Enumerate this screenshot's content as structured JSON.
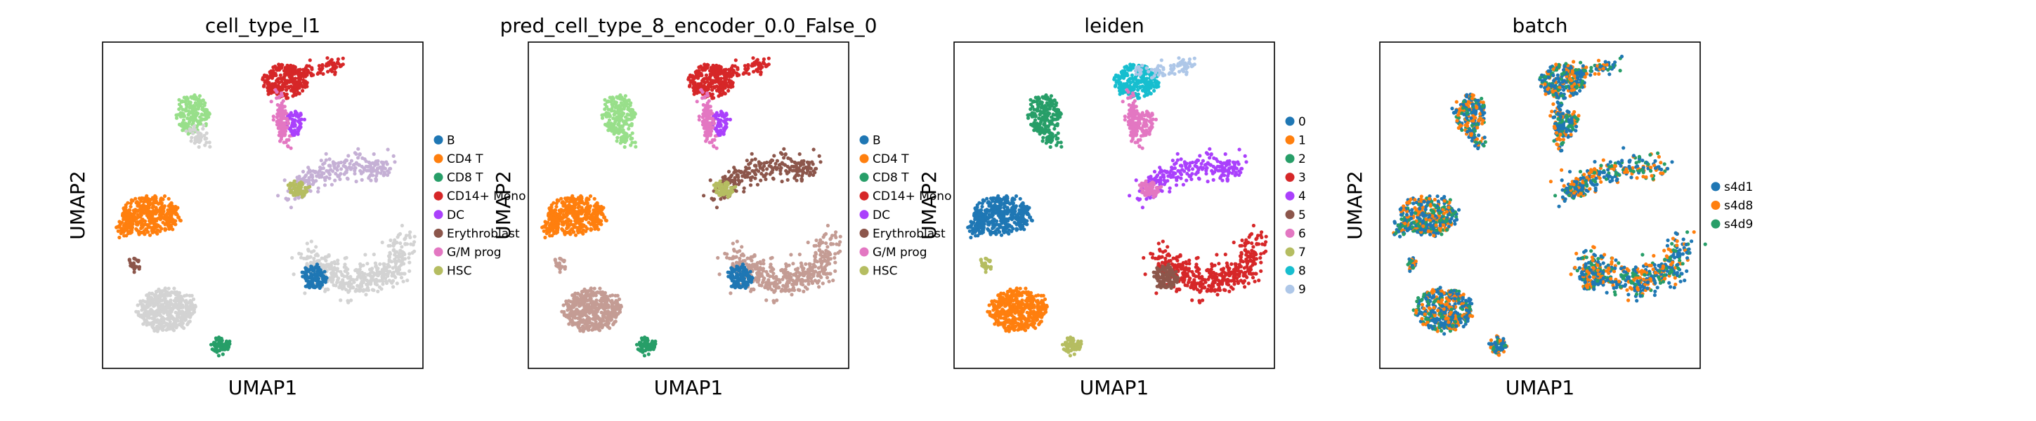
{
  "chart_data": [
    {
      "type": "scatter",
      "title": "cell_type_l1",
      "xlabel": "UMAP1",
      "ylabel": "UMAP2",
      "grid": false,
      "legend_position": "right",
      "series": [
        {
          "name": "B",
          "color": "#1f77b4"
        },
        {
          "name": "CD4 T",
          "color": "#ff7f0e"
        },
        {
          "name": "CD8 T",
          "color": "#279e68"
        },
        {
          "name": "CD14+ Mono",
          "color": "#d62728"
        },
        {
          "name": "DC",
          "color": "#aa40fc"
        },
        {
          "name": "Erythroblast",
          "color": "#8c564b"
        },
        {
          "name": "G/M prog",
          "color": "#e377c2"
        },
        {
          "name": "HSC",
          "color": "#b5bd61"
        }
      ]
    },
    {
      "type": "scatter",
      "title": "pred_cell_type_8_encoder_0.0_False_0",
      "xlabel": "UMAP1",
      "ylabel": "UMAP2",
      "grid": false,
      "legend_position": "right",
      "series": [
        {
          "name": "B",
          "color": "#1f77b4"
        },
        {
          "name": "CD4 T",
          "color": "#ff7f0e"
        },
        {
          "name": "CD8 T",
          "color": "#279e68"
        },
        {
          "name": "CD14+ Mono",
          "color": "#d62728"
        },
        {
          "name": "DC",
          "color": "#aa40fc"
        },
        {
          "name": "Erythroblast",
          "color": "#8c564b"
        },
        {
          "name": "G/M prog",
          "color": "#e377c2"
        },
        {
          "name": "HSC",
          "color": "#b5bd61"
        }
      ]
    },
    {
      "type": "scatter",
      "title": "leiden",
      "xlabel": "UMAP1",
      "ylabel": "UMAP2",
      "grid": false,
      "legend_position": "right",
      "series": [
        {
          "name": "0",
          "color": "#1f77b4"
        },
        {
          "name": "1",
          "color": "#ff7f0e"
        },
        {
          "name": "2",
          "color": "#279e68"
        },
        {
          "name": "3",
          "color": "#d62728"
        },
        {
          "name": "4",
          "color": "#aa40fc"
        },
        {
          "name": "5",
          "color": "#8c564b"
        },
        {
          "name": "6",
          "color": "#e377c2"
        },
        {
          "name": "7",
          "color": "#b5bd61"
        },
        {
          "name": "8",
          "color": "#17becf"
        },
        {
          "name": "9",
          "color": "#aec7e8"
        }
      ]
    },
    {
      "type": "scatter",
      "title": "batch",
      "xlabel": "UMAP1",
      "ylabel": "UMAP2",
      "grid": false,
      "legend_position": "right",
      "series": [
        {
          "name": "s4d1",
          "color": "#1f77b4"
        },
        {
          "name": "s4d8",
          "color": "#ff7f0e"
        },
        {
          "name": "s4d9",
          "color": "#279e68"
        }
      ]
    }
  ]
}
